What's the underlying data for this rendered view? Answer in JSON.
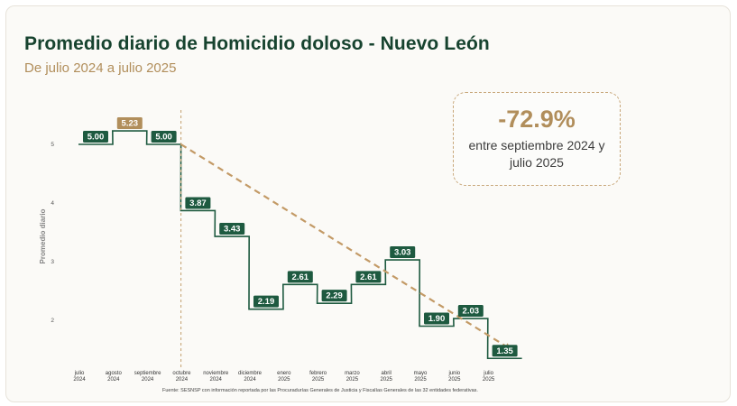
{
  "header": {
    "title": "Promedio diario de Homicidio doloso - Nuevo León",
    "subtitle": "De julio 2024 a julio 2025"
  },
  "callout": {
    "percent": "-72.9%",
    "description": "entre septiembre 2024 y julio 2025"
  },
  "source": "Fuente: SESNSP con información reportada por las Procuradurías Generales de Justicia y Fiscalías Generales de las 32 entidades federativas.",
  "colors": {
    "series": "#1e5a40",
    "highlight": "#b18e5b",
    "trend": "#c39a66",
    "divider": "#c8a77a"
  },
  "chart_data": {
    "type": "line",
    "step": true,
    "ylabel": "Promedio diario",
    "ylim": [
      1,
      5.5
    ],
    "yticks": [
      2,
      3,
      4,
      5
    ],
    "grid": false,
    "categories": [
      [
        "julio",
        "2024"
      ],
      [
        "agosto",
        "2024"
      ],
      [
        "septiembre",
        "2024"
      ],
      [
        "octubre",
        "2024"
      ],
      [
        "noviembre",
        "2024"
      ],
      [
        "diciembre",
        "2024"
      ],
      [
        "enero",
        "2025"
      ],
      [
        "febrero",
        "2025"
      ],
      [
        "marzo",
        "2025"
      ],
      [
        "abril",
        "2025"
      ],
      [
        "mayo",
        "2025"
      ],
      [
        "junio",
        "2025"
      ],
      [
        "julio",
        "2025"
      ]
    ],
    "values": [
      5.0,
      5.23,
      5.0,
      3.87,
      3.43,
      2.19,
      2.61,
      2.29,
      2.61,
      3.03,
      1.9,
      2.03,
      1.35
    ],
    "labels": [
      "5.00",
      "5.23",
      "5.00",
      "3.87",
      "3.43",
      "2.19",
      "2.61",
      "2.29",
      "2.61",
      "3.03",
      "1.90",
      "2.03",
      "1.35"
    ],
    "highlight_index": 1,
    "divider_after_index": 2,
    "trend": {
      "from_index": 2,
      "to_index": 12
    }
  }
}
